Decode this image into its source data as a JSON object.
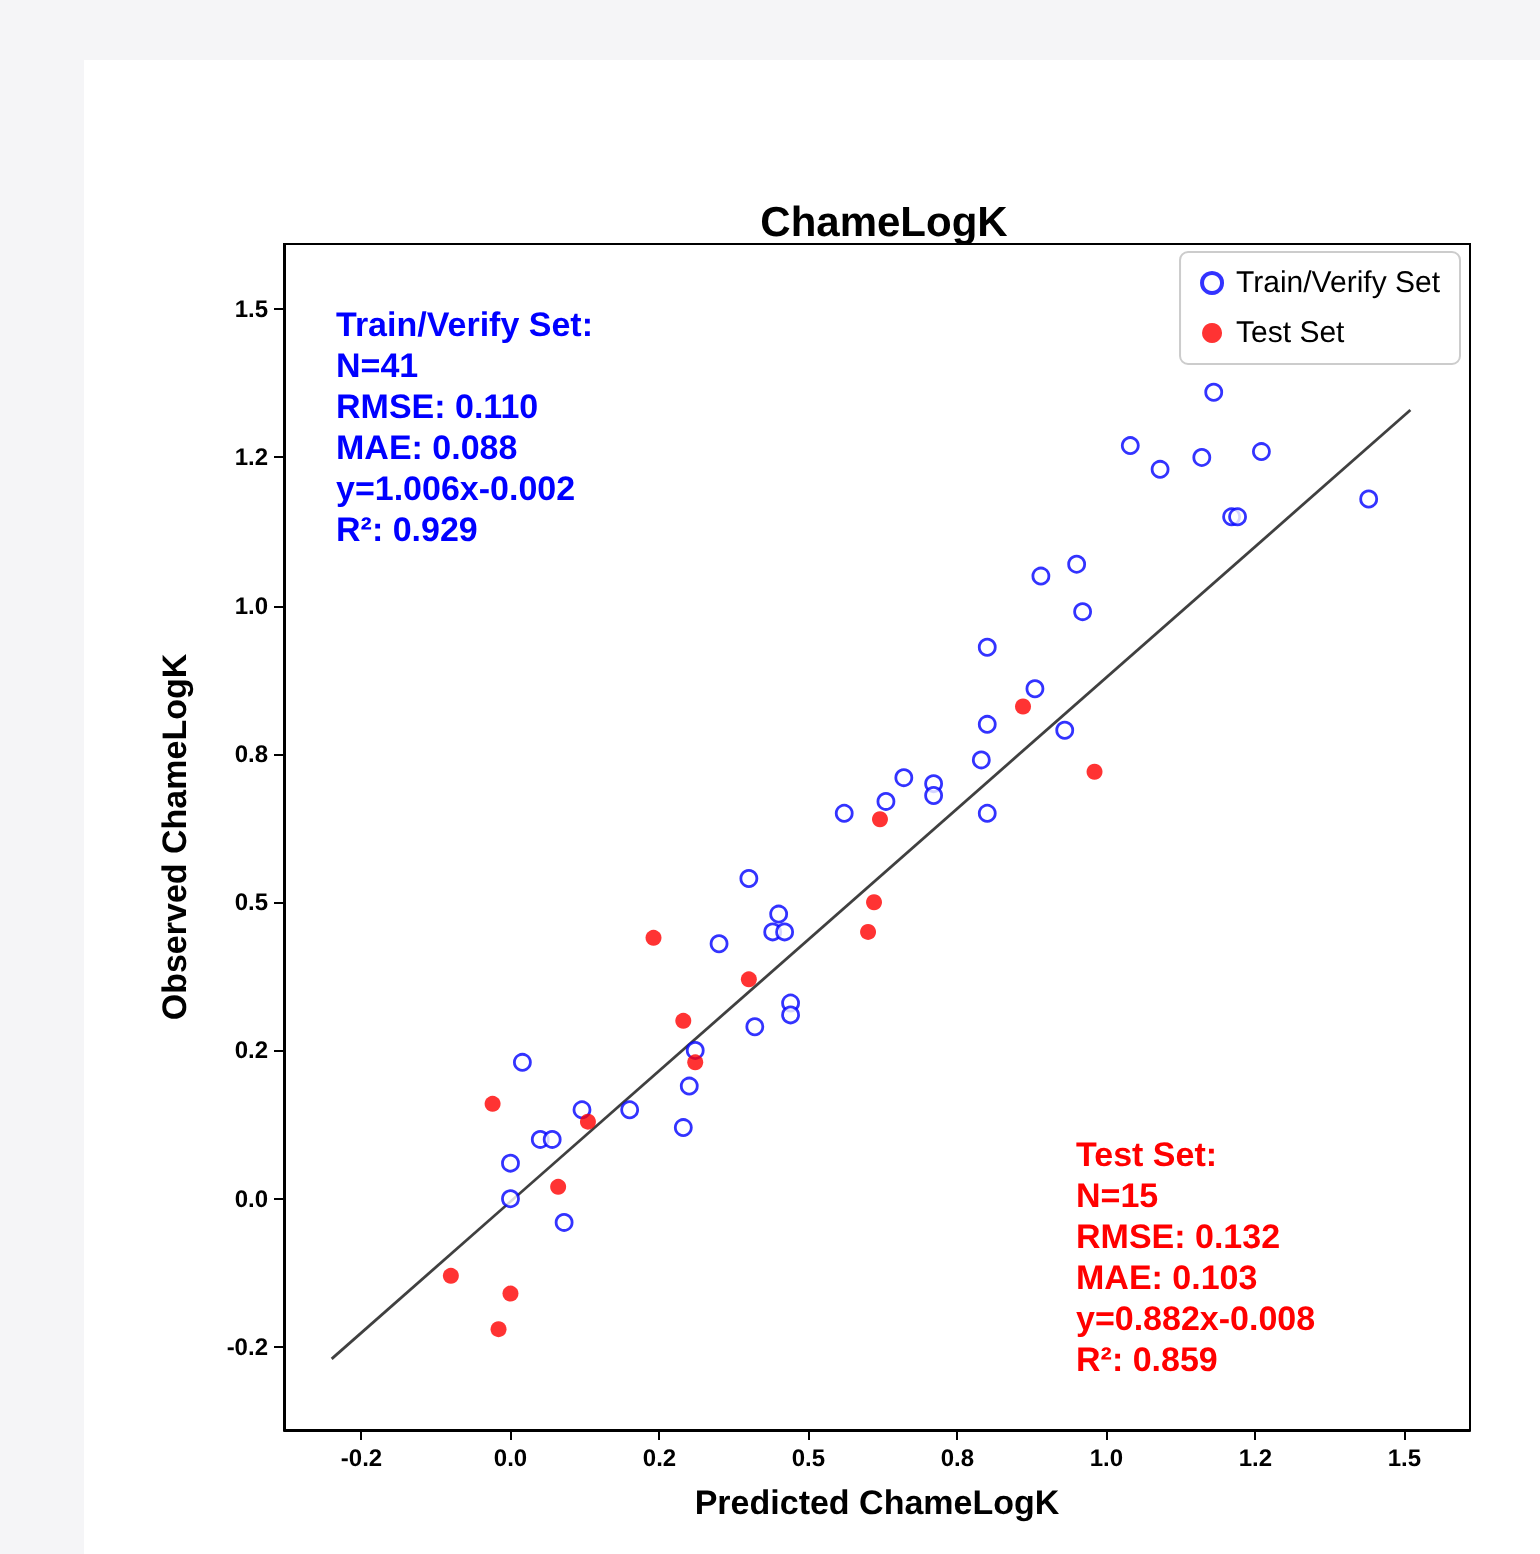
{
  "chart_data": {
    "type": "scatter",
    "title": "ChameLogK",
    "xlabel": "Predicted ChameLogK",
    "ylabel": "Observed ChameLogK",
    "series": [
      {
        "name": "Train/Verify Set",
        "color": "#0000ff",
        "marker": "circle",
        "x": [
          0.02,
          0.0,
          0.0,
          0.05,
          0.07,
          0.09,
          0.12,
          0.2,
          0.29,
          0.3,
          0.31,
          0.41,
          0.35,
          0.4,
          0.44,
          0.45,
          0.46,
          0.47,
          0.47,
          0.56,
          0.63,
          0.66,
          0.71,
          0.71,
          0.8,
          0.79,
          0.8,
          0.8,
          0.88,
          0.89,
          0.93,
          0.95,
          0.96,
          1.04,
          1.09,
          1.16,
          1.18,
          1.21,
          1.22,
          1.26,
          1.44
        ],
        "values": [
          0.23,
          0.06,
          0.0,
          0.1,
          0.1,
          -0.04,
          0.15,
          0.15,
          0.12,
          0.19,
          0.25,
          0.29,
          0.43,
          0.54,
          0.45,
          0.48,
          0.45,
          0.33,
          0.31,
          0.65,
          0.67,
          0.71,
          0.7,
          0.68,
          0.65,
          0.74,
          0.8,
          0.93,
          0.86,
          1.05,
          0.79,
          1.07,
          0.99,
          1.27,
          1.23,
          1.25,
          1.36,
          1.15,
          1.15,
          1.26,
          1.18
        ]
      },
      {
        "name": "Test Set",
        "color": "#ff0000",
        "marker": "circle",
        "x": [
          -0.1,
          -0.03,
          -0.02,
          0.0,
          0.08,
          0.13,
          0.24,
          0.29,
          0.31,
          0.4,
          0.6,
          0.61,
          0.62,
          0.86,
          0.98
        ],
        "values": [
          -0.13,
          0.16,
          -0.22,
          -0.16,
          0.02,
          0.13,
          0.44,
          0.3,
          0.23,
          0.37,
          0.45,
          0.5,
          0.64,
          0.83,
          0.72
        ]
      },
      {
        "type": "line",
        "color": "#404040",
        "marker": "none",
        "x": [
          -0.3,
          1.51
        ],
        "values": [
          -0.27,
          1.33
        ]
      }
    ],
    "xlim": [
      -0.38,
      1.61
    ],
    "ylim": [
      -0.39,
      1.61
    ],
    "xticks": [
      {
        "value": -0.25,
        "label": "-0.2"
      },
      {
        "value": 0,
        "label": "0.0"
      },
      {
        "value": 0.25,
        "label": "0.2"
      },
      0.5,
      {
        "value": 0.75,
        "label": "0.8"
      },
      {
        "value": 1,
        "label": "1.0"
      },
      {
        "value": 1.25,
        "label": "1.2"
      },
      1.5
    ],
    "yticks": [
      {
        "value": -0.25,
        "label": "-0.2"
      },
      {
        "value": 0,
        "label": "0.0"
      },
      {
        "value": 0.25,
        "label": "0.2"
      },
      0.5,
      {
        "value": 0.75,
        "label": "0.8"
      },
      {
        "value": 1,
        "label": "1.0"
      },
      {
        "value": 1.25,
        "label": "1.2"
      },
      1.5
    ],
    "annotations": [
      "Train/Verify Set:\nN=41\nRMSE: 0.110\nMAE: 0.088\ny=1.006x-0.002\nR²: 0.929",
      "Test Set:\nN=15\nRMSE: 0.132\nMAE: 0.103\ny=0.882x-0.008\nR²: 0.859"
    ],
    "grid": false,
    "legend": "top right"
  }
}
